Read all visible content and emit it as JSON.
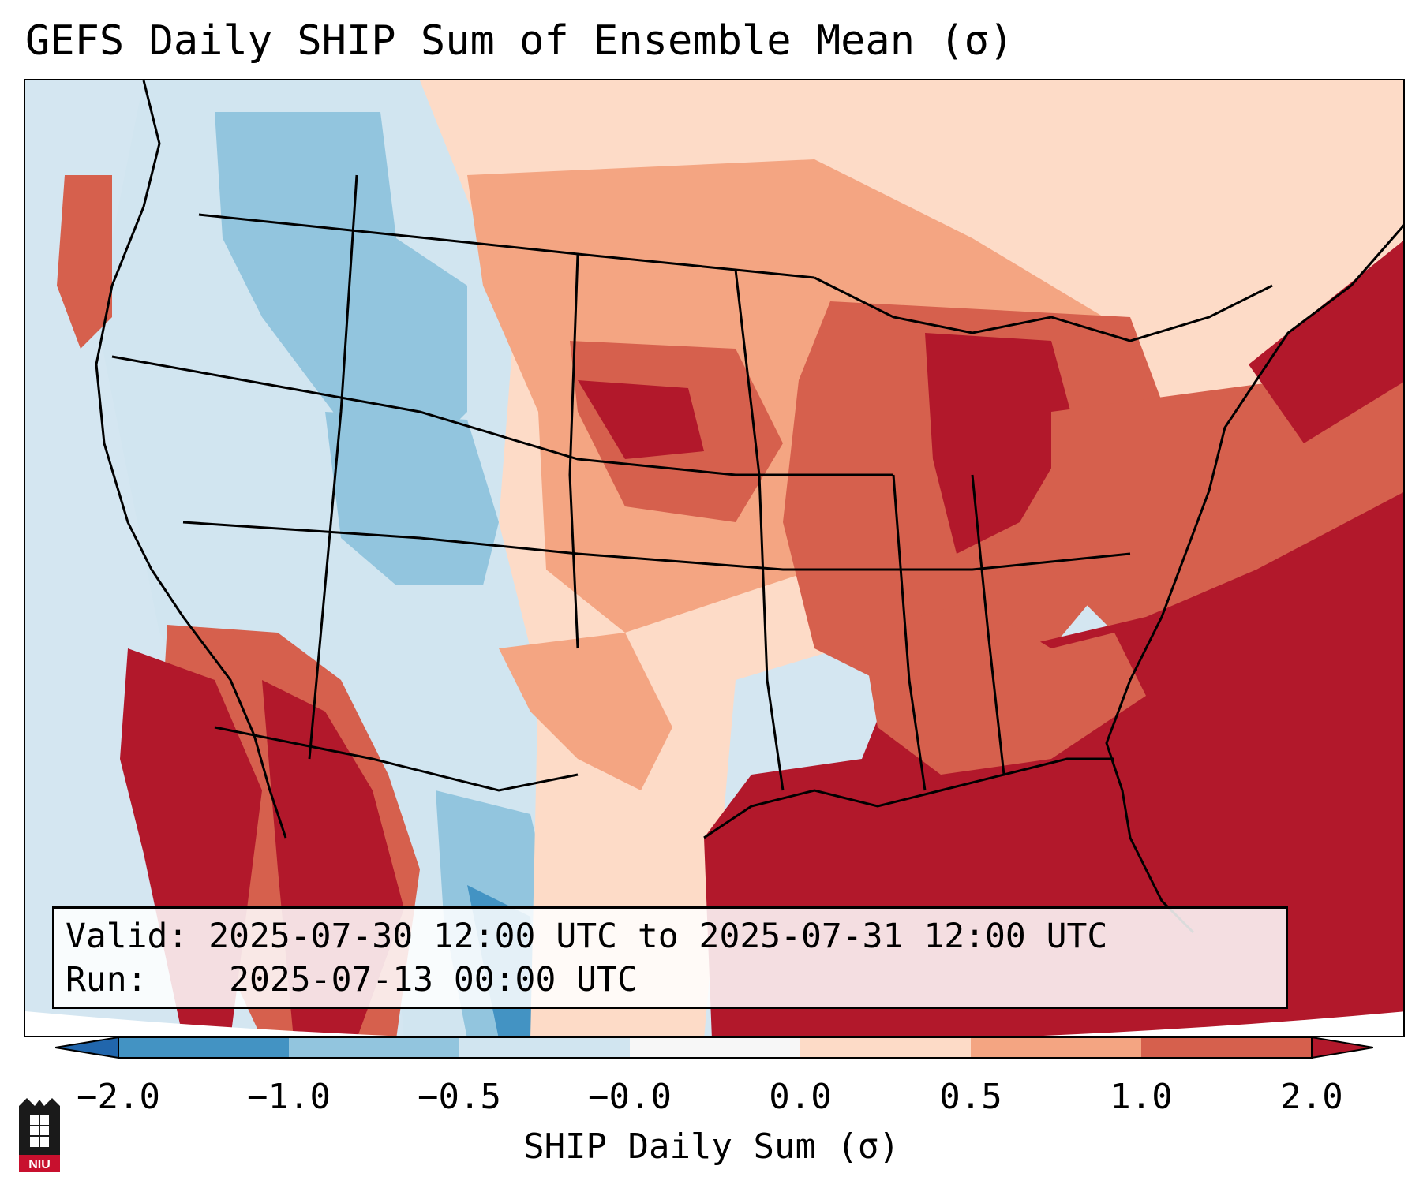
{
  "title": "GEFS Daily SHIP Sum of Ensemble Mean (σ)",
  "info": {
    "valid_label": "Valid:",
    "valid_value": "2025-07-30 12:00 UTC to 2025-07-31 12:00 UTC",
    "run_label": "Run:",
    "run_value": "2025-07-13 00:00 UTC"
  },
  "colorbar": {
    "label": "SHIP Daily Sum (σ)",
    "ticks": [
      "−2.0",
      "−1.0",
      "−0.5",
      "−0.0",
      "0.0",
      "0.5",
      "1.0",
      "2.0"
    ],
    "colors": [
      "#4393c3",
      "#92c5de",
      "#d1e5f0",
      "#f7f7f7",
      "#fddbc7",
      "#f4a582",
      "#d6604d",
      "#b2182b"
    ]
  },
  "logo": {
    "text": "NIU",
    "color": "#c8102e"
  }
}
